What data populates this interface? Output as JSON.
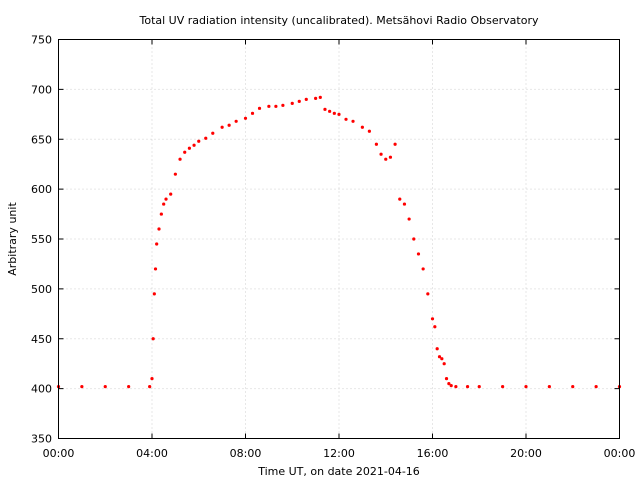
{
  "chart_data": {
    "type": "scatter",
    "title": "Total UV radiation intensity (uncalibrated). Metsähovi Radio Observatory",
    "xlabel": "Time UT, on date 2021-04-16",
    "ylabel": "Arbitrary unit",
    "xlim": [
      0,
      24
    ],
    "ylim": [
      350,
      750
    ],
    "grid": true,
    "x_ticks": [
      0,
      4,
      8,
      12,
      16,
      20,
      24
    ],
    "x_tick_labels": [
      "00:00",
      "04:00",
      "08:00",
      "12:00",
      "16:00",
      "20:00",
      "00:00"
    ],
    "y_ticks": [
      350,
      400,
      450,
      500,
      550,
      600,
      650,
      700,
      750
    ],
    "y_tick_labels": [
      "350",
      "400",
      "450",
      "500",
      "550",
      "600",
      "650",
      "700",
      "750"
    ],
    "series": [
      {
        "color": "#ff0000",
        "marker": "point",
        "x": [
          0.0,
          1.0,
          2.0,
          3.0,
          3.9,
          4.0,
          4.05,
          4.1,
          4.15,
          4.2,
          4.3,
          4.4,
          4.5,
          4.6,
          4.8,
          5.0,
          5.2,
          5.4,
          5.6,
          5.8,
          6.0,
          6.3,
          6.6,
          7.0,
          7.3,
          7.6,
          8.0,
          8.3,
          8.6,
          9.0,
          9.3,
          9.6,
          10.0,
          10.3,
          10.6,
          11.0,
          11.2,
          11.4,
          11.6,
          11.8,
          12.0,
          12.3,
          12.6,
          13.0,
          13.3,
          13.6,
          13.8,
          14.0,
          14.2,
          14.4,
          14.6,
          14.8,
          15.0,
          15.2,
          15.4,
          15.6,
          15.8,
          16.0,
          16.1,
          16.2,
          16.3,
          16.4,
          16.5,
          16.6,
          16.7,
          16.8,
          17.0,
          17.5,
          18.0,
          19.0,
          20.0,
          21.0,
          22.0,
          23.0,
          24.0
        ],
        "y": [
          402,
          402,
          402,
          402,
          402,
          410,
          450,
          495,
          520,
          545,
          560,
          575,
          585,
          590,
          595,
          615,
          630,
          637,
          641,
          644,
          648,
          651,
          656,
          662,
          664,
          668,
          671,
          676,
          681,
          683,
          683,
          684,
          686,
          688,
          690,
          691,
          692,
          680,
          678,
          676,
          675,
          670,
          668,
          662,
          658,
          645,
          635,
          630,
          632,
          645,
          590,
          585,
          570,
          550,
          535,
          520,
          495,
          470,
          462,
          440,
          432,
          430,
          425,
          410,
          405,
          403,
          402,
          402,
          402,
          402,
          402,
          402,
          402,
          402,
          402
        ]
      }
    ]
  }
}
